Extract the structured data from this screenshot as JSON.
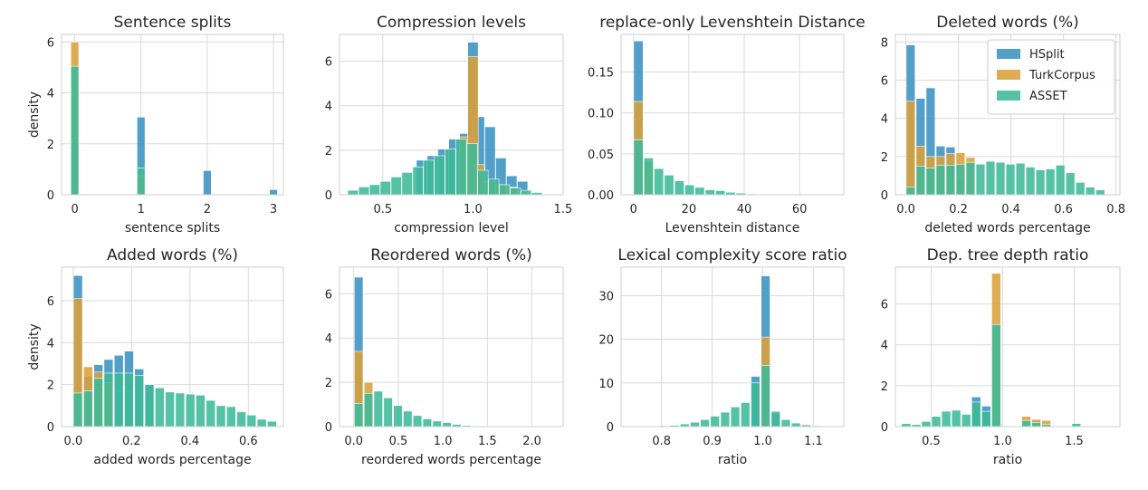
{
  "colors": {
    "HSplit": "#3a92c1",
    "TurkCorpus": "#daa03a",
    "ASSET": "#3dba98",
    "grid": "#dadada",
    "background": "#ffffff"
  },
  "legend": {
    "placement": "top-right",
    "panel": 3,
    "entries": [
      "HSplit",
      "TurkCorpus",
      "ASSET"
    ]
  },
  "chart_data": [
    {
      "type": "bar",
      "title": "Sentence splits",
      "xlabel": "sentence splits",
      "ylabel": "density",
      "xlim": [
        -0.2,
        3.15
      ],
      "ylim": [
        0,
        6.3
      ],
      "xticks": [
        0,
        1,
        2,
        3
      ],
      "xticklabels": [
        "0",
        "1",
        "2",
        "3"
      ],
      "yticks": [
        0,
        2,
        4,
        6
      ],
      "yticklabels": [
        "0",
        "2",
        "4",
        "6"
      ],
      "bin_width": 0.12,
      "series": [
        {
          "name": "HSplit",
          "x": [
            0.0,
            1.0,
            2.0,
            3.0
          ],
          "values": [
            2.0,
            3.05,
            0.95,
            0.2
          ]
        },
        {
          "name": "TurkCorpus",
          "x": [
            0.0,
            1.0
          ],
          "values": [
            6.0,
            0.75
          ]
        },
        {
          "name": "ASSET",
          "x": [
            0.0,
            1.0
          ],
          "values": [
            5.05,
            1.05
          ]
        }
      ]
    },
    {
      "type": "bar",
      "title": "Compression levels",
      "xlabel": "compression level",
      "ylabel": "",
      "xlim": [
        0.26,
        1.5
      ],
      "ylim": [
        0,
        7.2
      ],
      "xticks": [
        0.5,
        1.0,
        1.5
      ],
      "xticklabels": [
        "0.5",
        "1.0",
        "1.5"
      ],
      "yticks": [
        0,
        2,
        4,
        6
      ],
      "yticklabels": [
        "0",
        "2",
        "4",
        "6"
      ],
      "bin_width": 0.058,
      "series": [
        {
          "name": "HSplit",
          "x": [
            0.715,
            0.775,
            0.835,
            0.895,
            0.955,
            1.0,
            1.035,
            1.095,
            1.155,
            1.215,
            1.275
          ],
          "values": [
            1.55,
            1.75,
            2.05,
            2.5,
            2.75,
            6.85,
            3.5,
            3.05,
            1.65,
            0.85,
            0.6
          ]
        },
        {
          "name": "TurkCorpus",
          "x": [
            0.955,
            1.0,
            1.035,
            1.095,
            1.155,
            1.215,
            1.275
          ],
          "values": [
            2.6,
            6.2,
            1.35,
            0.6,
            0.45,
            0.35,
            0.15
          ]
        },
        {
          "name": "ASSET",
          "x": [
            0.335,
            0.395,
            0.455,
            0.515,
            0.575,
            0.635,
            0.695,
            0.755,
            0.815,
            0.875,
            0.935,
            0.995,
            1.055,
            1.115,
            1.175,
            1.235,
            1.295,
            1.355
          ],
          "values": [
            0.2,
            0.35,
            0.45,
            0.6,
            0.8,
            1.0,
            1.25,
            1.55,
            1.75,
            2.05,
            2.5,
            2.3,
            1.1,
            0.7,
            0.45,
            0.3,
            0.2,
            0.1
          ]
        }
      ]
    },
    {
      "type": "bar",
      "title": "replace-only Levenshtein Distance",
      "xlabel": "Levenshtein distance",
      "ylabel": "",
      "xlim": [
        -4.5,
        76
      ],
      "ylim": [
        0,
        0.196
      ],
      "xticks": [
        0,
        20,
        40,
        60
      ],
      "xticklabels": [
        "0",
        "20",
        "40",
        "60"
      ],
      "yticks": [
        0.0,
        0.05,
        0.1,
        0.15
      ],
      "yticklabels": [
        "0.00",
        "0.05",
        "0.10",
        "0.15"
      ],
      "bin_width": 3.4,
      "series": [
        {
          "name": "HSplit",
          "x": [
            1.75
          ],
          "values": [
            0.188
          ]
        },
        {
          "name": "TurkCorpus",
          "x": [
            1.75,
            5.45
          ],
          "values": [
            0.114,
            0.04
          ]
        },
        {
          "name": "ASSET",
          "x": [
            1.75,
            5.45,
            9.15,
            12.85,
            16.55,
            20.25,
            23.95,
            27.65,
            31.35,
            35.05,
            38.75,
            42.45
          ],
          "values": [
            0.067,
            0.045,
            0.032,
            0.024,
            0.017,
            0.012,
            0.009,
            0.006,
            0.005,
            0.003,
            0.002,
            0.001
          ]
        }
      ]
    },
    {
      "type": "bar",
      "title": "Deleted words (%)",
      "xlabel": "deleted words percentage",
      "ylabel": "",
      "xlim": [
        -0.04,
        0.815
      ],
      "ylim": [
        0,
        8.4
      ],
      "xticks": [
        0.0,
        0.2,
        0.4,
        0.6,
        0.8
      ],
      "xticklabels": [
        "0.0",
        "0.2",
        "0.4",
        "0.6",
        "0.8"
      ],
      "yticks": [
        0,
        2,
        4,
        6,
        8
      ],
      "yticklabels": [
        "0",
        "2",
        "4",
        "6",
        "8"
      ],
      "bin_width": 0.034,
      "series": [
        {
          "name": "HSplit",
          "x": [
            0.018,
            0.056,
            0.094,
            0.132,
            0.17,
            0.208
          ],
          "values": [
            7.85,
            5.05,
            5.6,
            2.55,
            2.5,
            0.7
          ]
        },
        {
          "name": "TurkCorpus",
          "x": [
            0.018,
            0.056,
            0.094,
            0.132,
            0.17,
            0.208,
            0.246
          ],
          "values": [
            4.9,
            2.55,
            2.0,
            2.0,
            2.15,
            2.2,
            1.95
          ]
        },
        {
          "name": "ASSET",
          "x": [
            0.018,
            0.056,
            0.094,
            0.132,
            0.17,
            0.208,
            0.246,
            0.284,
            0.322,
            0.36,
            0.398,
            0.436,
            0.474,
            0.512,
            0.55,
            0.588,
            0.626,
            0.664,
            0.702,
            0.74
          ],
          "values": [
            0.4,
            1.5,
            1.4,
            1.55,
            1.55,
            1.6,
            1.7,
            1.6,
            1.75,
            1.7,
            1.6,
            1.65,
            1.45,
            1.3,
            1.35,
            1.55,
            1.15,
            0.65,
            0.4,
            0.25
          ]
        }
      ]
    },
    {
      "type": "bar",
      "title": "Added words (%)",
      "xlabel": "added words percentage",
      "ylabel": "density",
      "xlim": [
        -0.04,
        0.72
      ],
      "ylim": [
        0,
        7.6
      ],
      "xticks": [
        0.0,
        0.2,
        0.4,
        0.6
      ],
      "xticklabels": [
        "0.0",
        "0.2",
        "0.4",
        "0.6"
      ],
      "yticks": [
        0,
        2,
        4,
        6
      ],
      "yticklabels": [
        "0",
        "2",
        "4",
        "6"
      ],
      "bin_width": 0.031,
      "series": [
        {
          "name": "HSplit",
          "x": [
            0.016,
            0.051,
            0.086,
            0.121,
            0.156,
            0.191,
            0.226,
            0.261
          ],
          "values": [
            7.2,
            2.4,
            2.95,
            3.2,
            3.4,
            3.6,
            2.75,
            2.0
          ]
        },
        {
          "name": "TurkCorpus",
          "x": [
            0.016,
            0.051,
            0.086,
            0.121
          ],
          "values": [
            6.1,
            2.85,
            2.6,
            2.1
          ]
        },
        {
          "name": "ASSET",
          "x": [
            0.016,
            0.051,
            0.086,
            0.121,
            0.156,
            0.191,
            0.226,
            0.261,
            0.296,
            0.331,
            0.366,
            0.401,
            0.436,
            0.471,
            0.506,
            0.541,
            0.576,
            0.611,
            0.646,
            0.681
          ],
          "values": [
            1.6,
            1.7,
            2.3,
            2.55,
            2.55,
            2.55,
            2.45,
            2.0,
            1.85,
            1.65,
            1.6,
            1.55,
            1.5,
            1.25,
            1.0,
            0.95,
            0.7,
            0.55,
            0.35,
            0.25
          ]
        }
      ]
    },
    {
      "type": "bar",
      "title": "Reordered words (%)",
      "xlabel": "reordered words percentage",
      "ylabel": "",
      "xlim": [
        -0.16,
        2.35
      ],
      "ylim": [
        0,
        7.2
      ],
      "xticks": [
        0.0,
        0.5,
        1.0,
        1.5,
        2.0
      ],
      "xticklabels": [
        "0.0",
        "0.5",
        "1.0",
        "1.5",
        "2.0"
      ],
      "yticks": [
        0,
        2,
        4,
        6
      ],
      "yticklabels": [
        "0",
        "2",
        "4",
        "6"
      ],
      "bin_width": 0.098,
      "series": [
        {
          "name": "HSplit",
          "x": [
            0.055
          ],
          "values": [
            6.75
          ]
        },
        {
          "name": "TurkCorpus",
          "x": [
            0.055,
            0.165
          ],
          "values": [
            3.4,
            2.0
          ]
        },
        {
          "name": "ASSET",
          "x": [
            0.055,
            0.165,
            0.275,
            0.385,
            0.495,
            0.605,
            0.715,
            0.825,
            0.935,
            1.045,
            1.155,
            1.265
          ],
          "values": [
            1.05,
            1.5,
            1.6,
            1.3,
            0.95,
            0.7,
            0.5,
            0.35,
            0.25,
            0.18,
            0.1,
            0.05
          ]
        }
      ]
    },
    {
      "type": "bar",
      "title": "Lexical complexity score ratio",
      "xlabel": "ratio",
      "ylabel": "",
      "xlim": [
        0.72,
        1.16
      ],
      "ylim": [
        0,
        36.5
      ],
      "xticks": [
        0.8,
        0.9,
        1.0,
        1.1
      ],
      "xticklabels": [
        "0.8",
        "0.9",
        "1.0",
        "1.1"
      ],
      "yticks": [
        0,
        10,
        20,
        30
      ],
      "yticklabels": [
        "0",
        "10",
        "20",
        "30"
      ],
      "bin_width": 0.0175,
      "series": [
        {
          "name": "HSplit",
          "x": [
            0.9855,
            1.0055,
            1.0255
          ],
          "values": [
            11.5,
            34.5,
            3.0
          ]
        },
        {
          "name": "TurkCorpus",
          "x": [
            1.0055
          ],
          "values": [
            20.5
          ]
        },
        {
          "name": "ASSET",
          "x": [
            0.7655,
            0.7855,
            0.8055,
            0.8255,
            0.8455,
            0.8655,
            0.8855,
            0.9055,
            0.9255,
            0.9455,
            0.9655,
            0.9855,
            1.0055,
            1.0255,
            1.0455,
            1.0655,
            1.0855,
            1.1055
          ],
          "values": [
            0.1,
            0.15,
            0.2,
            0.3,
            0.6,
            1.0,
            1.6,
            2.4,
            3.3,
            4.5,
            5.5,
            10.0,
            14.0,
            3.5,
            1.6,
            0.8,
            0.4,
            0.2
          ]
        }
      ]
    },
    {
      "type": "bar",
      "title": "Dep. tree depth ratio",
      "xlabel": "ratio",
      "ylabel": "",
      "xlim": [
        0.25,
        1.82
      ],
      "ylim": [
        0,
        7.8
      ],
      "xticks": [
        0.5,
        1.0,
        1.5
      ],
      "xticklabels": [
        "0.5",
        "1.0",
        "1.5"
      ],
      "yticks": [
        0,
        2,
        4,
        6
      ],
      "yticklabels": [
        "0",
        "2",
        "4",
        "6"
      ],
      "bin_width": 0.063,
      "series": [
        {
          "name": "HSplit",
          "x": [
            0.815,
            0.885,
            0.955,
            1.235
          ],
          "values": [
            1.45,
            1.0,
            0.35,
            0.3
          ]
        },
        {
          "name": "TurkCorpus",
          "x": [
            0.955,
            1.165,
            1.235,
            1.305
          ],
          "values": [
            7.5,
            0.5,
            0.35,
            0.3
          ]
        },
        {
          "name": "ASSET",
          "x": [
            0.325,
            0.395,
            0.465,
            0.535,
            0.605,
            0.675,
            0.745,
            0.815,
            0.885,
            0.955,
            1.025,
            1.095,
            1.165,
            1.235,
            1.305,
            1.375,
            1.445,
            1.515,
            1.585,
            1.655,
            1.725
          ],
          "values": [
            0.15,
            0.1,
            0.25,
            0.5,
            0.75,
            0.8,
            0.6,
            1.2,
            0.75,
            5.0,
            0.02,
            0.02,
            0.3,
            0.2,
            0.1,
            0.02,
            0.02,
            0.15,
            0.02,
            0.02,
            0.02
          ]
        }
      ]
    }
  ]
}
